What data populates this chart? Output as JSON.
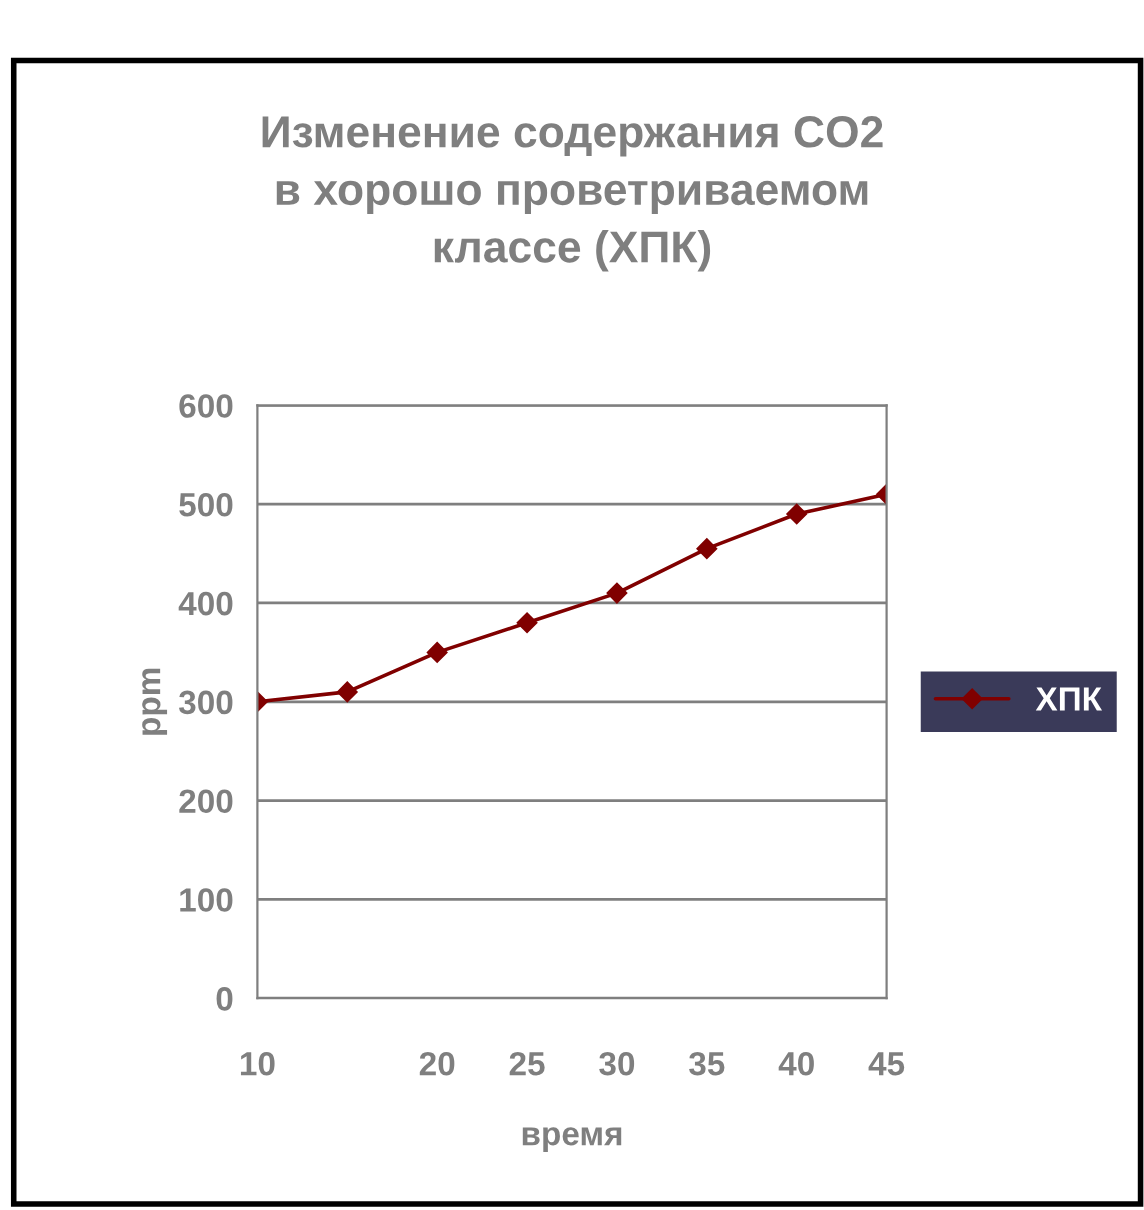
{
  "chart_data": {
    "type": "line",
    "title": "Изменение содержания CO2\nв хорошо проветриваемом\nклассе (ХПК)",
    "xlabel": "время",
    "ylabel": "ppm",
    "categories": [
      "10",
      null,
      "20",
      "25",
      "30",
      "35",
      "40",
      "45"
    ],
    "series": [
      {
        "name": "ХПК",
        "color": "#800000",
        "values": [
          300,
          310,
          350,
          380,
          410,
          455,
          490,
          510
        ]
      }
    ],
    "ylim": [
      0,
      600
    ],
    "yticks": [
      0,
      100,
      200,
      300,
      400,
      500,
      600
    ],
    "grid": "y",
    "legend": "right",
    "marker": "diamond",
    "line_style": "solid"
  }
}
